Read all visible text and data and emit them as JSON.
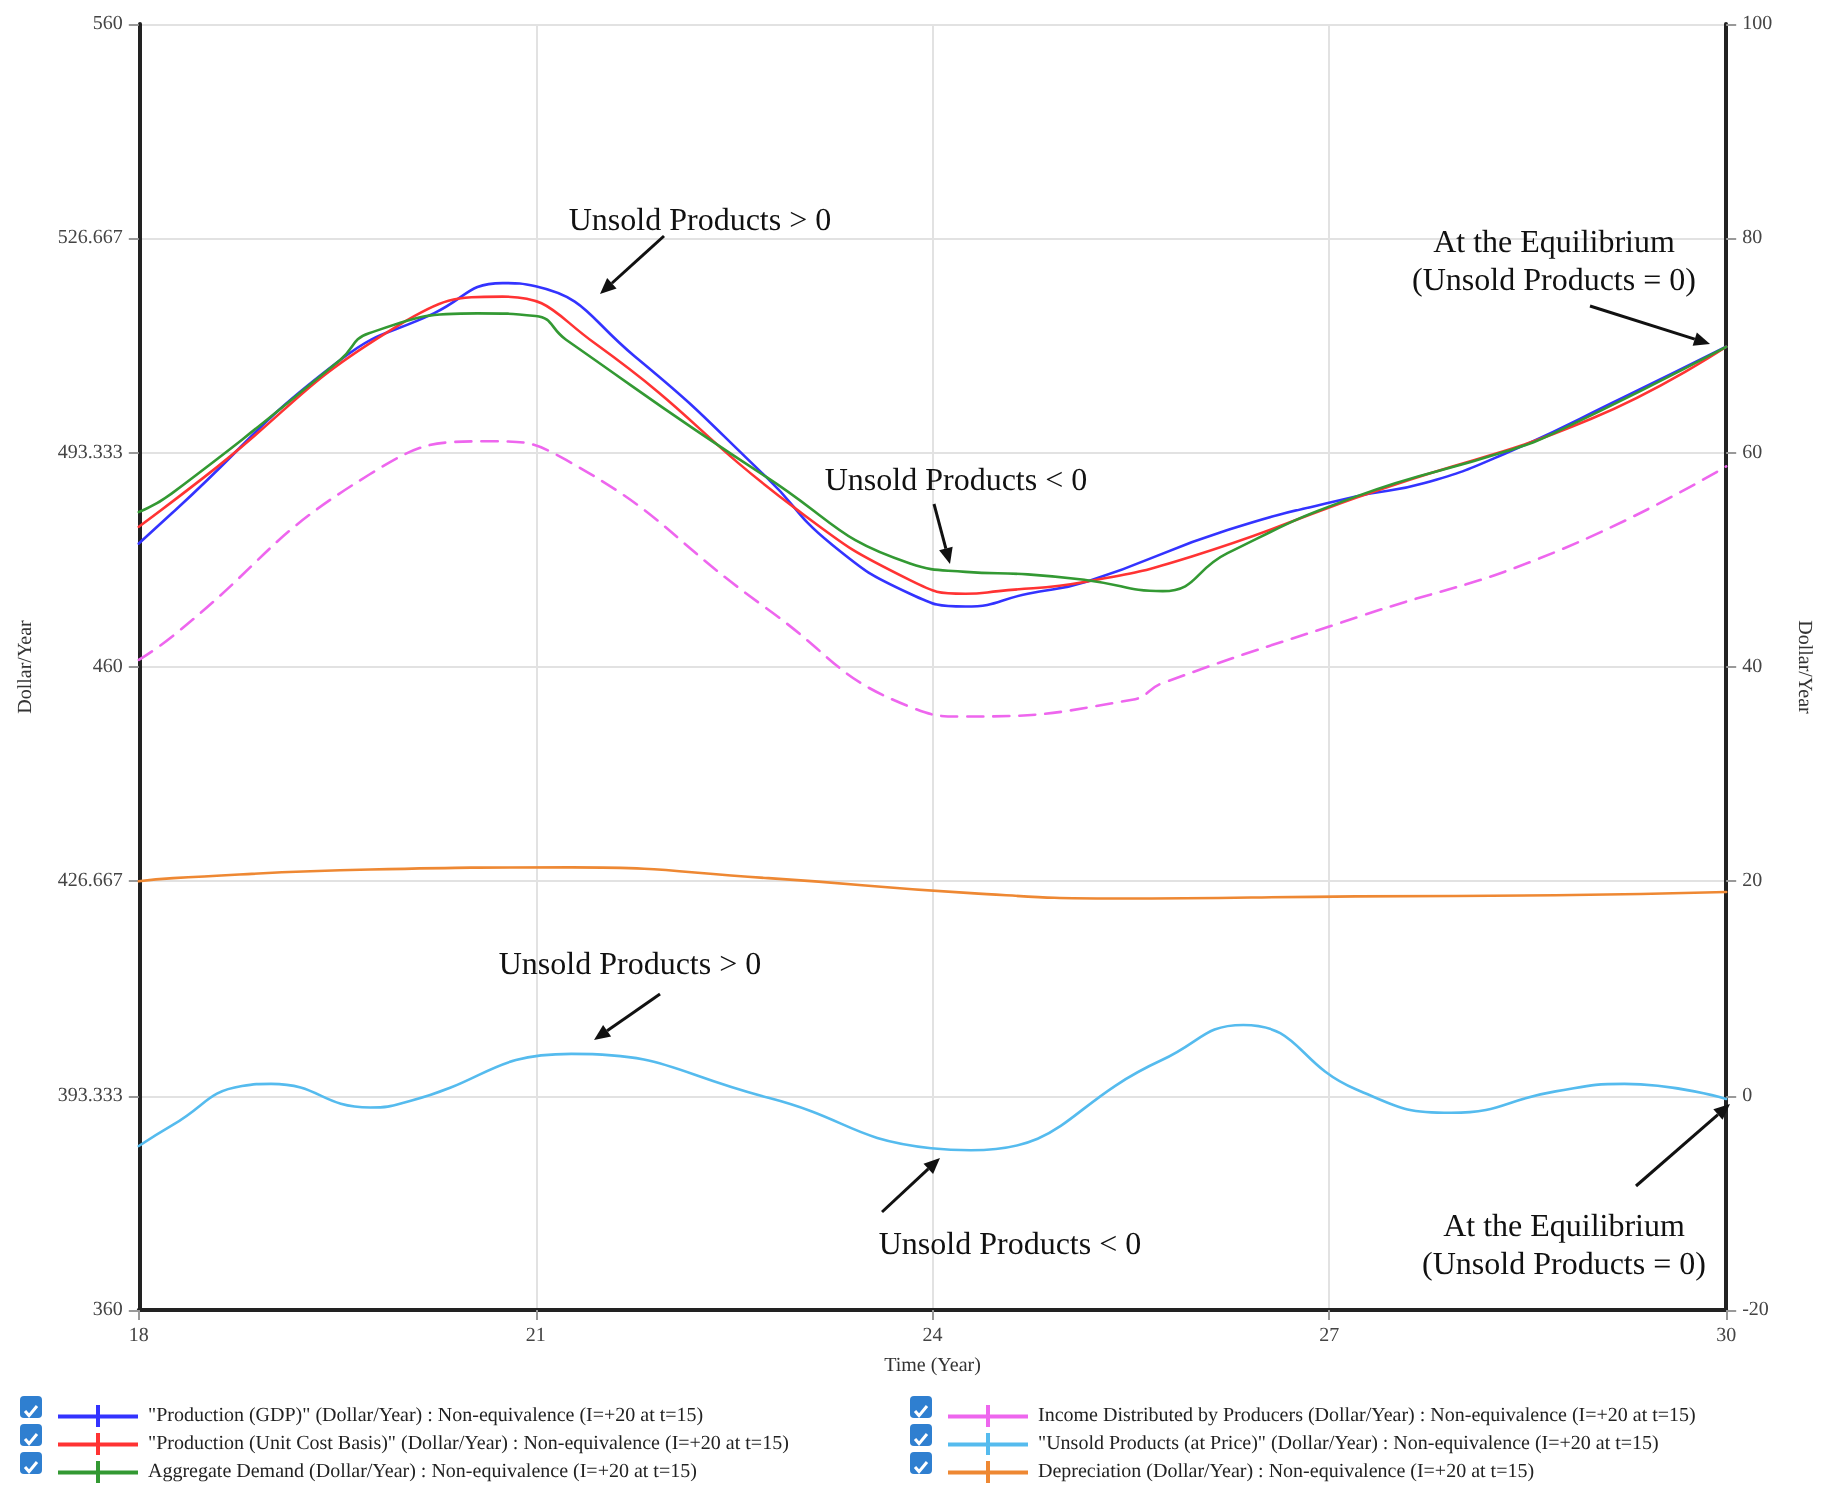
{
  "chart_data": {
    "type": "line",
    "xlabel": "Time (Year)",
    "ylabel": "Dollar/Year",
    "y2label": "Dollar/Year",
    "xlim": [
      18,
      30
    ],
    "xticks": [
      18,
      21,
      24,
      27,
      30
    ],
    "ylim": [
      360,
      560
    ],
    "yticks": [
      360,
      393.333,
      426.667,
      460,
      493.333,
      526.667,
      560
    ],
    "y2lim": [
      -20,
      100
    ],
    "y2ticks": [
      -20,
      0,
      20,
      40,
      60,
      80,
      100
    ],
    "grid": true,
    "legend": "bottom",
    "series": [
      {
        "name": "\"Production (GDP)\" (Dollar/Year) : Non-equivalence (I=+20 at t=15)",
        "color": "#3333ff",
        "x": [
          18,
          18.25,
          19.52,
          20.23,
          20.75,
          21,
          21.75,
          22.74,
          23.23,
          23.83,
          24.25,
          24.72,
          25.17,
          26.23,
          27.2,
          27.72,
          28.33,
          29.23,
          30
        ],
        "values": [
          479.2,
          483.9,
          507.7,
          515,
          519.7,
          519.2,
          508.3,
          489.6,
          479.2,
          471.4,
          469.4,
          471.4,
          473.3,
          481.3,
          486.5,
          488.6,
          493.2,
          502,
          509.8
        ]
      },
      {
        "name": "\"Production (Unit Cost Basis)\" (Dollar/Year) : Non-equivalence (I=+20 at t=15)",
        "color": "#ff3333",
        "x": [
          18,
          18.48,
          19.96,
          20.75,
          21.45,
          22.98,
          23.83,
          24.25,
          24.5,
          25.17,
          25.96,
          27.2,
          27.47,
          28.98,
          30
        ],
        "values": [
          481.8,
          489.3,
          513.1,
          517.6,
          510.3,
          484.4,
          473.5,
          471.4,
          471.8,
          473.3,
          477.2,
          486.3,
          488.2,
          498.6,
          509.8
        ]
      },
      {
        "name": "Aggregate Demand (Dollar/Year) : Non-equivalence (I=+20 at t=15)",
        "color": "#339933",
        "x": [
          18,
          18.25,
          19.52,
          19.74,
          20.56,
          21,
          21.23,
          22.74,
          23.83,
          24.25,
          24.72,
          25.17,
          25.74,
          26.23,
          27.2,
          28.33,
          28.71,
          30
        ],
        "values": [
          484.1,
          487,
          507.7,
          511.9,
          515,
          514.6,
          510.9,
          489.6,
          476.1,
          474.8,
          474.4,
          473.5,
          471.8,
          477.7,
          486.5,
          493.5,
          496.5,
          509.8
        ]
      },
      {
        "name": "Income Distributed by Producers (Dollar/Year) : Non-equivalence (I=+20 at t=15)",
        "color": "#ee66ee",
        "line_style": "dashed",
        "x": [
          18,
          18.25,
          19.74,
          20.65,
          21.23,
          22.74,
          23.83,
          24.25,
          25.51,
          25.74,
          27.22,
          28.71,
          30
        ],
        "values": [
          461.1,
          464.7,
          489.9,
          495.1,
          492.2,
          469.2,
          453.8,
          452.3,
          454.9,
          457.5,
          467.8,
          477.9,
          491.2
        ]
      },
      {
        "name": "\"Unsold Products (at Price)\" (Dollar/Year) : Non-equivalence (I=+20 at t=15)",
        "color": "#55bbee",
        "axis": "y2",
        "x": [
          18,
          18.26,
          18.78,
          19,
          19.75,
          20.05,
          21.27,
          22.76,
          23.99,
          24.29,
          25.73,
          26.35,
          27.2,
          27.92,
          28.71,
          29.23,
          30
        ],
        "values": [
          -4.7,
          -2.7,
          0.9,
          1.1,
          -1.1,
          -0.5,
          3.9,
          -0.2,
          -4.9,
          -5.1,
          3.3,
          6.6,
          0.6,
          -1.6,
          0.4,
          1.1,
          -0.3
        ]
      },
      {
        "name": "Depreciation (Dollar/Year) : Non-equivalence (I=+20 at t=15)",
        "color": "#ee8833",
        "axis": "y2",
        "x": [
          18,
          18.26,
          19.75,
          21.27,
          22.76,
          24.29,
          25.39,
          27.2,
          28.71,
          30
        ],
        "values": [
          20,
          20.3,
          21.1,
          21.3,
          20.3,
          18.9,
          18.4,
          18.6,
          18.7,
          19
        ]
      }
    ],
    "annotations": [
      "Unsold Products > 0",
      "Unsold Products < 0",
      "At the Equilibrium\n(Unsold Products = 0)",
      "Unsold Products > 0",
      "Unsold Products < 0",
      "At the Equilibrium\n(Unsold Products = 0)"
    ]
  }
}
